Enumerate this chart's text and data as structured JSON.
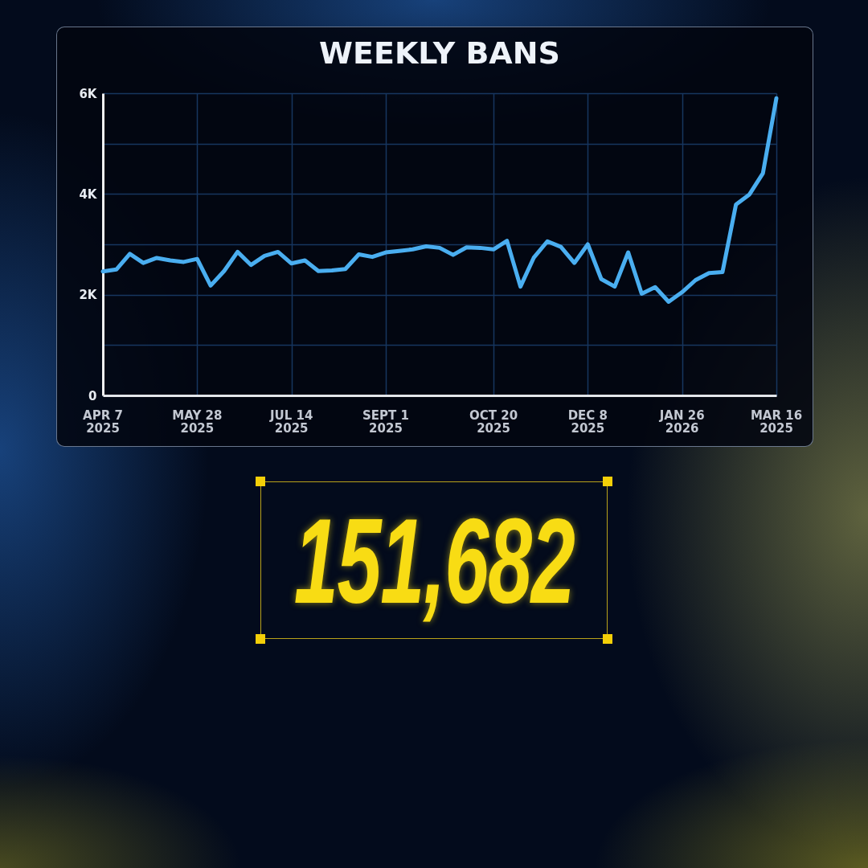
{
  "chart_data": {
    "type": "line",
    "title": "WEEKLY BANS",
    "categories": [
      "APR 7\n2025",
      null,
      null,
      null,
      null,
      null,
      null,
      "MAY 28\n2025",
      null,
      null,
      null,
      null,
      null,
      null,
      "JUL 14\n2025",
      null,
      null,
      null,
      null,
      null,
      null,
      "SEPT 1\n2025",
      null,
      null,
      null,
      null,
      null,
      null,
      null,
      "OCT 20\n2025",
      null,
      null,
      null,
      null,
      null,
      null,
      "DEC 8\n2025",
      null,
      null,
      null,
      null,
      null,
      null,
      "JAN 26\n2026",
      null,
      null,
      null,
      null,
      null,
      null,
      "MAR 16\n2025"
    ],
    "series": [
      {
        "color": "#4aaef0",
        "values": [
          2460,
          2500,
          2810,
          2630,
          2730,
          2680,
          2650,
          2710,
          2180,
          2470,
          2850,
          2590,
          2770,
          2850,
          2620,
          2680,
          2470,
          2480,
          2510,
          2800,
          2750,
          2840,
          2870,
          2900,
          2960,
          2930,
          2790,
          2940,
          2930,
          2900,
          3070,
          2160,
          2740,
          3060,
          2950,
          2630,
          3000,
          2310,
          2160,
          2840,
          2020,
          2150,
          1860,
          2050,
          2290,
          2430,
          2450,
          3790,
          3990,
          4410,
          5900
        ]
      }
    ],
    "ylim": [
      0,
      6000
    ],
    "yticks": [
      0,
      {
        "value": 1000,
        "label": null
      },
      {
        "value": 2000,
        "label": "2K"
      },
      {
        "value": 3000,
        "label": null
      },
      {
        "value": 4000,
        "label": "4K"
      },
      {
        "value": 5000,
        "label": null
      },
      {
        "value": 6000,
        "label": "6K"
      }
    ],
    "grid": true,
    "line_style": "solid",
    "annotations": [
      "151,682"
    ]
  }
}
